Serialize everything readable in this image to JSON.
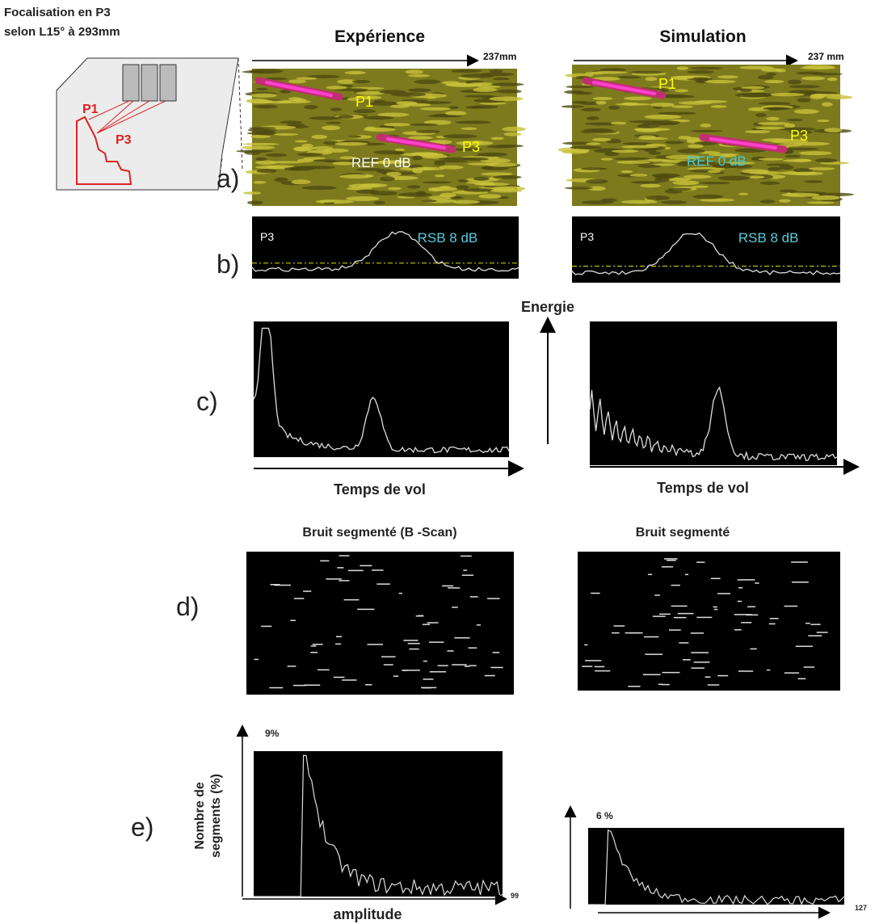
{
  "header": {
    "lines": [
      "Focalisation en P3",
      "selon L15° à 293mm"
    ]
  },
  "schematic": {
    "p1": "P1",
    "p3": "P3"
  },
  "row_labels": [
    "a)",
    "b)",
    "c)",
    "d)",
    "e)"
  ],
  "energy_label": "Energie",
  "histogram_ylabel": [
    "Nombre de",
    "segments (%)"
  ],
  "histogram_xlabel": "amplitude",
  "columns": [
    {
      "title": "Expérience",
      "length": "237mm",
      "bscan": {
        "p1": "P1",
        "p3": "P3",
        "ref": "REF 0 dB"
      },
      "profile": {
        "point": "P3",
        "snr": "RSB 8 dB"
      },
      "xaxis": "Temps de vol",
      "noise_title": "Bruit segmenté (B -Scan)",
      "histogram": {
        "max": "9%",
        "end": 99
      }
    },
    {
      "title": "Simulation",
      "length": "237 mm",
      "bscan": {
        "p1": "P1",
        "p3": "P3",
        "ref": "REF 0 dB"
      },
      "profile": {
        "point": "P3",
        "snr": "RSB 8 dB"
      },
      "xaxis": "Temps de vol",
      "noise_title": "Bruit segmenté",
      "histogram": {
        "max": "6 %",
        "end": 127
      }
    }
  ]
}
